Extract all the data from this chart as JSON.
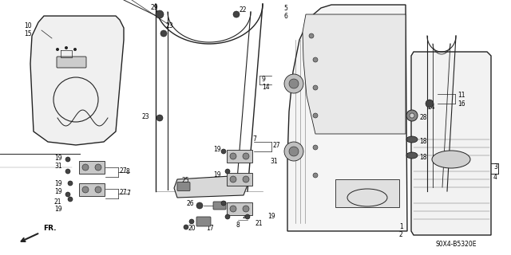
{
  "bg_color": "#ffffff",
  "line_color": "#222222",
  "diagram_code": "S0X4-B5320E",
  "fig_width": 6.4,
  "fig_height": 3.2,
  "dpi": 100
}
